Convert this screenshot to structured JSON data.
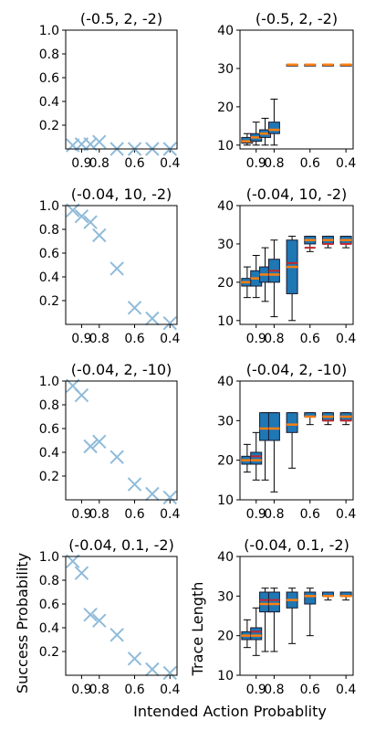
{
  "figure": {
    "ylabel_left": "Success Probability",
    "ylabel_right": "Trace Length",
    "xlabel": "Intended Action Probablity"
  },
  "colors": {
    "marker": "#8fbbd9",
    "box_fill": "#1f77b4",
    "box_edge": "#1a1a2e",
    "median": "#ff7f0e",
    "whisker": "#000000",
    "mean_red": "#c0272d"
  },
  "chart_data": [
    {
      "type": "scatter",
      "title": "(-0.5, 2, -2)",
      "x": [
        0.95,
        0.9,
        0.85,
        0.8,
        0.7,
        0.6,
        0.5,
        0.4
      ],
      "y": [
        0.03,
        0.04,
        0.04,
        0.06,
        0.0,
        0.0,
        0.0,
        0.0
      ],
      "yticks": [
        "0.2",
        "0.4",
        "0.6",
        "0.8",
        "1.0"
      ],
      "xticks": [
        "0.9",
        "0.8",
        "0.6",
        "0.4"
      ],
      "ylim": [
        0,
        1.0
      ]
    },
    {
      "type": "box",
      "title": "(-0.5, 2, -2)",
      "x": [
        0.95,
        0.9,
        0.85,
        0.8,
        0.7,
        0.6,
        0.5,
        0.4
      ],
      "boxes": [
        {
          "min": 10,
          "q1": 10.5,
          "med": 11,
          "q3": 12,
          "max": 13,
          "mean": 11.5
        },
        {
          "min": 10,
          "q1": 11,
          "med": 12,
          "q3": 13,
          "max": 16,
          "mean": 12
        },
        {
          "min": 10,
          "q1": 12,
          "med": 13,
          "q3": 14,
          "max": 17,
          "mean": 13
        },
        {
          "min": 10,
          "q1": 13,
          "med": 14,
          "q3": 16,
          "max": 22,
          "mean": 14
        },
        {
          "min": 31,
          "q1": 31,
          "med": 31,
          "q3": 31,
          "max": 31,
          "mean": 31
        },
        {
          "min": 31,
          "q1": 31,
          "med": 31,
          "q3": 31,
          "max": 31,
          "mean": 31
        },
        {
          "min": 31,
          "q1": 31,
          "med": 31,
          "q3": 31,
          "max": 31,
          "mean": 31
        },
        {
          "min": 31,
          "q1": 31,
          "med": 31,
          "q3": 31,
          "max": 31,
          "mean": 31
        }
      ],
      "yticks": [
        "10",
        "20",
        "30",
        "40"
      ],
      "xticks": [
        "0.9",
        "0.8",
        "0.6",
        "0.4"
      ],
      "ylim": [
        9,
        40
      ]
    },
    {
      "type": "scatter",
      "title": "(-0.04, 10, -2)",
      "x": [
        0.95,
        0.9,
        0.85,
        0.8,
        0.7,
        0.6,
        0.5,
        0.4
      ],
      "y": [
        0.96,
        0.91,
        0.86,
        0.75,
        0.47,
        0.14,
        0.05,
        0.01
      ],
      "yticks": [
        "0.2",
        "0.4",
        "0.6",
        "0.8",
        "1.0"
      ],
      "xticks": [
        "0.9",
        "0.8",
        "0.6",
        "0.4"
      ],
      "ylim": [
        0,
        1.0
      ]
    },
    {
      "type": "box",
      "title": "(-0.04, 10, -2)",
      "x": [
        0.95,
        0.9,
        0.85,
        0.8,
        0.7,
        0.6,
        0.5,
        0.4
      ],
      "boxes": [
        {
          "min": 16,
          "q1": 19,
          "med": 20,
          "q3": 21,
          "max": 24,
          "mean": 20
        },
        {
          "min": 16,
          "q1": 19,
          "med": 21,
          "q3": 23,
          "max": 27,
          "mean": 21
        },
        {
          "min": 15,
          "q1": 20,
          "med": 22,
          "q3": 24,
          "max": 29,
          "mean": 22
        },
        {
          "min": 11,
          "q1": 20,
          "med": 22,
          "q3": 26,
          "max": 31,
          "mean": 23
        },
        {
          "min": 10,
          "q1": 17,
          "med": 24,
          "q3": 31,
          "max": 32,
          "mean": 25
        },
        {
          "min": 28,
          "q1": 30,
          "med": 31,
          "q3": 32,
          "max": 32,
          "mean": 29
        },
        {
          "min": 29,
          "q1": 30,
          "med": 31,
          "q3": 32,
          "max": 32,
          "mean": 30
        },
        {
          "min": 29,
          "q1": 30,
          "med": 31,
          "q3": 32,
          "max": 32,
          "mean": 30
        }
      ],
      "yticks": [
        "10",
        "20",
        "30",
        "40"
      ],
      "xticks": [
        "0.9",
        "0.8",
        "0.6",
        "0.4"
      ],
      "ylim": [
        9,
        40
      ]
    },
    {
      "type": "scatter",
      "title": "(-0.04, 2, -10)",
      "x": [
        0.95,
        0.9,
        0.85,
        0.8,
        0.7,
        0.6,
        0.5,
        0.4
      ],
      "y": [
        0.96,
        0.88,
        0.45,
        0.49,
        0.36,
        0.13,
        0.05,
        0.02
      ],
      "yticks": [
        "0.2",
        "0.4",
        "0.6",
        "0.8",
        "1.0"
      ],
      "xticks": [
        "0.9",
        "0.8",
        "0.6",
        "0.4"
      ],
      "ylim": [
        0,
        1.0
      ]
    },
    {
      "type": "box",
      "title": "(-0.04, 2, -10)",
      "x": [
        0.95,
        0.9,
        0.85,
        0.8,
        0.7,
        0.6,
        0.5,
        0.4
      ],
      "boxes": [
        {
          "min": 17,
          "q1": 19,
          "med": 20,
          "q3": 21,
          "max": 24,
          "mean": 20
        },
        {
          "min": 15,
          "q1": 19,
          "med": 20,
          "q3": 22,
          "max": 27,
          "mean": 21
        },
        {
          "min": 15,
          "q1": 25,
          "med": 28,
          "q3": 32,
          "max": 32,
          "mean": 28
        },
        {
          "min": 12,
          "q1": 25,
          "med": 28,
          "q3": 32,
          "max": 32,
          "mean": 28
        },
        {
          "min": 18,
          "q1": 27,
          "med": 29,
          "q3": 32,
          "max": 32,
          "mean": 29
        },
        {
          "min": 29,
          "q1": 31,
          "med": 31,
          "q3": 32,
          "max": 32,
          "mean": 31
        },
        {
          "min": 29,
          "q1": 30,
          "med": 31,
          "q3": 32,
          "max": 32,
          "mean": 30
        },
        {
          "min": 29,
          "q1": 30,
          "med": 31,
          "q3": 32,
          "max": 32,
          "mean": 30
        }
      ],
      "yticks": [
        "10",
        "20",
        "30",
        "40"
      ],
      "xticks": [
        "0.9",
        "0.8",
        "0.6",
        "0.4"
      ],
      "ylim": [
        10,
        40
      ]
    },
    {
      "type": "scatter",
      "title": "(-0.04, 0.1, -2)",
      "x": [
        0.95,
        0.9,
        0.85,
        0.8,
        0.7,
        0.6,
        0.5,
        0.4
      ],
      "y": [
        0.96,
        0.86,
        0.51,
        0.46,
        0.34,
        0.14,
        0.05,
        0.02
      ],
      "yticks": [
        "0.2",
        "0.4",
        "0.6",
        "0.8",
        "1.0"
      ],
      "xticks": [
        "0.9",
        "0.8",
        "0.6",
        "0.4"
      ],
      "ylim": [
        0,
        1.0
      ]
    },
    {
      "type": "box",
      "title": "(-0.04, 0.1, -2)",
      "x": [
        0.95,
        0.9,
        0.85,
        0.8,
        0.7,
        0.6,
        0.5,
        0.4
      ],
      "boxes": [
        {
          "min": 17,
          "q1": 19,
          "med": 20,
          "q3": 21,
          "max": 24,
          "mean": 20
        },
        {
          "min": 15,
          "q1": 19,
          "med": 20,
          "q3": 22,
          "max": 27,
          "mean": 21
        },
        {
          "min": 16,
          "q1": 26,
          "med": 28,
          "q3": 31,
          "max": 32,
          "mean": 29
        },
        {
          "min": 16,
          "q1": 26,
          "med": 28,
          "q3": 31,
          "max": 32,
          "mean": 29
        },
        {
          "min": 18,
          "q1": 27,
          "med": 29,
          "q3": 31,
          "max": 32,
          "mean": 29
        },
        {
          "min": 20,
          "q1": 28,
          "med": 30,
          "q3": 31,
          "max": 32,
          "mean": 30
        },
        {
          "min": 29,
          "q1": 30,
          "med": 30,
          "q3": 31,
          "max": 31,
          "mean": 30
        },
        {
          "min": 29,
          "q1": 30,
          "med": 30,
          "q3": 31,
          "max": 31,
          "mean": 30
        }
      ],
      "yticks": [
        "10",
        "20",
        "30",
        "40"
      ],
      "xticks": [
        "0.9",
        "0.8",
        "0.6",
        "0.4"
      ],
      "ylim": [
        10,
        40
      ]
    }
  ]
}
